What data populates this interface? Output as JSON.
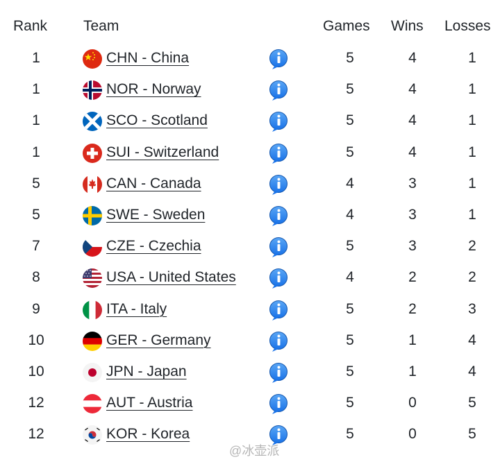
{
  "headers": {
    "rank": "Rank",
    "team": "Team",
    "games": "Games",
    "wins": "Wins",
    "losses": "Losses"
  },
  "rows": [
    {
      "rank": "1",
      "team": "CHN - China",
      "flag": "china-flag-icon",
      "games": "5",
      "wins": "4",
      "losses": "1"
    },
    {
      "rank": "1",
      "team": "NOR - Norway",
      "flag": "norway-flag-icon",
      "games": "5",
      "wins": "4",
      "losses": "1"
    },
    {
      "rank": "1",
      "team": "SCO - Scotland",
      "flag": "scotland-flag-icon",
      "games": "5",
      "wins": "4",
      "losses": "1"
    },
    {
      "rank": "1",
      "team": "SUI - Switzerland",
      "flag": "switzerland-flag-icon",
      "games": "5",
      "wins": "4",
      "losses": "1"
    },
    {
      "rank": "5",
      "team": "CAN - Canada",
      "flag": "canada-flag-icon",
      "games": "4",
      "wins": "3",
      "losses": "1"
    },
    {
      "rank": "5",
      "team": "SWE - Sweden",
      "flag": "sweden-flag-icon",
      "games": "4",
      "wins": "3",
      "losses": "1"
    },
    {
      "rank": "7",
      "team": "CZE - Czechia",
      "flag": "czechia-flag-icon",
      "games": "5",
      "wins": "3",
      "losses": "2"
    },
    {
      "rank": "8",
      "team": "USA - United States",
      "flag": "usa-flag-icon",
      "games": "4",
      "wins": "2",
      "losses": "2"
    },
    {
      "rank": "9",
      "team": "ITA - Italy",
      "flag": "italy-flag-icon",
      "games": "5",
      "wins": "2",
      "losses": "3"
    },
    {
      "rank": "10",
      "team": "GER - Germany",
      "flag": "germany-flag-icon",
      "games": "5",
      "wins": "1",
      "losses": "4"
    },
    {
      "rank": "10",
      "team": "JPN - Japan",
      "flag": "japan-flag-icon",
      "games": "5",
      "wins": "1",
      "losses": "4"
    },
    {
      "rank": "12",
      "team": "AUT - Austria",
      "flag": "austria-flag-icon",
      "games": "5",
      "wins": "0",
      "losses": "5"
    },
    {
      "rank": "12",
      "team": "KOR - Korea",
      "flag": "korea-flag-icon",
      "games": "5",
      "wins": "0",
      "losses": "5"
    }
  ],
  "info_icon": "info-icon",
  "colors": {
    "info_blue": "#1a73e8",
    "text": "#1f2328"
  },
  "watermark": "@冰壶派"
}
